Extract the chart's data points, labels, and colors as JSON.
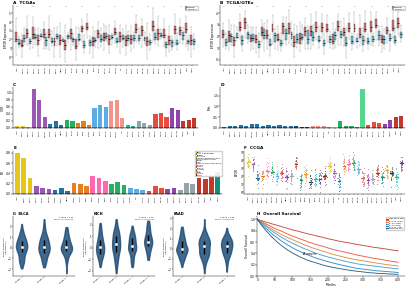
{
  "panel_A_title": "TCGAs",
  "panel_B_title": "TCGA/GTEx",
  "cancers": [
    "ACC",
    "BLCA",
    "BRCA",
    "CESC",
    "CHOL",
    "COAD",
    "DLBC",
    "ESCA",
    "GBM",
    "HNSC",
    "KICH",
    "KIRC",
    "KIRP",
    "LAML",
    "LGG",
    "LIHC",
    "LUAD",
    "LUSC",
    "MESO",
    "OV",
    "PAAD",
    "PCPG",
    "PRAD",
    "READ",
    "SARC",
    "SKCM",
    "STAD",
    "TGCT",
    "THCA",
    "THYM",
    "UCEC",
    "UCS",
    "UVM"
  ],
  "bar_C_colors": [
    "#e6c619",
    "#e6c619",
    "#e6c619",
    "#9b59b6",
    "#9b59b6",
    "#9b59b6",
    "#2471a3",
    "#2471a3",
    "#2471a3",
    "#27ae60",
    "#27ae60",
    "#e67e22",
    "#e67e22",
    "#e67e22",
    "#5dade2",
    "#5dade2",
    "#5dade2",
    "#f1948a",
    "#f1948a",
    "#f1948a",
    "#1abc9c",
    "#1abc9c",
    "#95a5a6",
    "#95a5a6",
    "#95a5a6",
    "#e74c3c",
    "#e74c3c",
    "#e74c3c",
    "#8e44ad",
    "#8e44ad",
    "#c0392b",
    "#c0392b",
    "#c0392b"
  ],
  "bar_C_vals": [
    0.05,
    0.04,
    0.03,
    1.1,
    0.8,
    0.3,
    0.12,
    0.18,
    0.08,
    0.22,
    0.18,
    0.15,
    0.2,
    0.08,
    0.55,
    0.65,
    0.6,
    0.75,
    0.8,
    0.28,
    0.08,
    0.04,
    0.18,
    0.14,
    0.07,
    0.38,
    0.42,
    0.32,
    0.55,
    0.5,
    0.18,
    0.22,
    0.28
  ],
  "bar_D_colors": [
    "#2471a3",
    "#2471a3",
    "#2471a3",
    "#2471a3",
    "#2471a3",
    "#2471a3",
    "#2471a3",
    "#2471a3",
    "#2471a3",
    "#2471a3",
    "#2471a3",
    "#2471a3",
    "#2471a3",
    "#1a5276",
    "#1a5276",
    "#1a5276",
    "#f1948a",
    "#f1948a",
    "#f1948a",
    "#f1948a",
    "#f9e79f",
    "#27ae60",
    "#27ae60",
    "#27ae60",
    "#27ae60",
    "#58d68d",
    "#e74c3c",
    "#e74c3c",
    "#e74c3c",
    "#8e44ad",
    "#8e44ad",
    "#c0392b",
    "#c0392b"
  ],
  "bar_D_vals": [
    0.04,
    0.07,
    0.1,
    0.13,
    0.09,
    0.16,
    0.18,
    0.07,
    0.11,
    0.09,
    0.14,
    0.08,
    0.1,
    0.07,
    0.05,
    0.04,
    0.1,
    0.09,
    0.07,
    0.05,
    0.02,
    0.32,
    0.1,
    0.07,
    0.05,
    1.8,
    0.13,
    0.27,
    0.22,
    0.18,
    0.38,
    0.48,
    0.55
  ],
  "bar_E_colors": [
    "#e6c619",
    "#e6c619",
    "#e6c619",
    "#9b59b6",
    "#9b59b6",
    "#9b59b6",
    "#2471a3",
    "#2471a3",
    "#2471a3",
    "#e67e22",
    "#e67e22",
    "#e67e22",
    "#ff69b4",
    "#ff69b4",
    "#ff69b4",
    "#27ae60",
    "#27ae60",
    "#27ae60",
    "#5dade2",
    "#5dade2",
    "#5dade2",
    "#e74c3c",
    "#e74c3c",
    "#e74c3c",
    "#8e44ad",
    "#8e44ad",
    "#95a5a6",
    "#95a5a6",
    "#95a5a6",
    "#c0392b",
    "#c0392b",
    "#c0392b",
    "#148f77"
  ],
  "bar_E_vals": [
    0.8,
    0.7,
    0.3,
    0.15,
    0.12,
    0.1,
    0.08,
    0.12,
    0.06,
    0.2,
    0.18,
    0.15,
    0.35,
    0.3,
    0.25,
    0.18,
    0.22,
    0.16,
    0.12,
    0.1,
    0.08,
    0.06,
    0.14,
    0.12,
    0.1,
    0.12,
    0.08,
    0.2,
    0.18,
    0.3,
    0.28,
    0.35,
    0.42
  ],
  "bar_E_legend_labels": [
    "Brain",
    "Liver & gallbladder",
    "Bladder",
    "Endocrine",
    "Female reproductive tract",
    "Gastrointestinal tract",
    "Kidney",
    "Lung",
    "Lymphoid neoplasm diffuse",
    "Myeloid",
    "Nervous",
    "Prostate",
    "Sarcoma",
    "Skin",
    "Testis",
    "Thyroid",
    "Uterus"
  ],
  "bar_E_legend_colors": [
    "#e6c619",
    "#9b59b6",
    "#2471a3",
    "#e67e22",
    "#ff69b4",
    "#27ae60",
    "#5dade2",
    "#e74c3c",
    "#8e44ad",
    "#95a5a6",
    "#c0392b",
    "#148f77",
    "#f39c12",
    "#2c3e50",
    "#d4ac0d",
    "#1abc9c",
    "#922b21"
  ],
  "scatter_F_colors": [
    "#e6c619",
    "#9b59b6",
    "#2471a3",
    "#e67e22",
    "#ff69b4",
    "#27ae60",
    "#5dade2",
    "#e74c3c",
    "#8e44ad",
    "#95a5a6",
    "#c0392b",
    "#148f77",
    "#f39c12",
    "#2c3e50",
    "#1abc9c",
    "#6c3483",
    "#922b21",
    "#e6c619",
    "#9b59b6",
    "#2471a3",
    "#e67e22",
    "#ff69b4",
    "#27ae60",
    "#5dade2",
    "#e74c3c",
    "#8e44ad",
    "#95a5a6",
    "#c0392b",
    "#148f77",
    "#f39c12",
    "#2c3e50",
    "#1abc9c",
    "#6c3483"
  ],
  "violin_titles": [
    "BLCA",
    "KICH",
    "PAAD"
  ],
  "violin_stages": [
    [
      "Stage I",
      "Stage II",
      "Stage III"
    ],
    [
      "Stage I",
      "Stage II",
      "Stage III",
      "Stage IV"
    ],
    [
      "Stage I",
      "Stage II",
      "Stage III"
    ]
  ],
  "violin_pvals": [
    "F value = 9.62\nFDR P < 0.05/0.001",
    "F value = 6.23\nFDR P < 0.05/0.001",
    "F value = 5.18\nFDR P < 0.05/0.001"
  ],
  "surv_colors": [
    "#c0392b",
    "#e74c3c",
    "#e67e22",
    "#3498db",
    "#2980b9",
    "#1a5276"
  ],
  "surv_labels": [
    "High EPOR 25%",
    "p<0.05 (High)",
    "p=NS (High)",
    "p=NS (Low)",
    "p<0.05 (Low)",
    "Low EPOR 25%"
  ],
  "bg_color": "#ffffff"
}
